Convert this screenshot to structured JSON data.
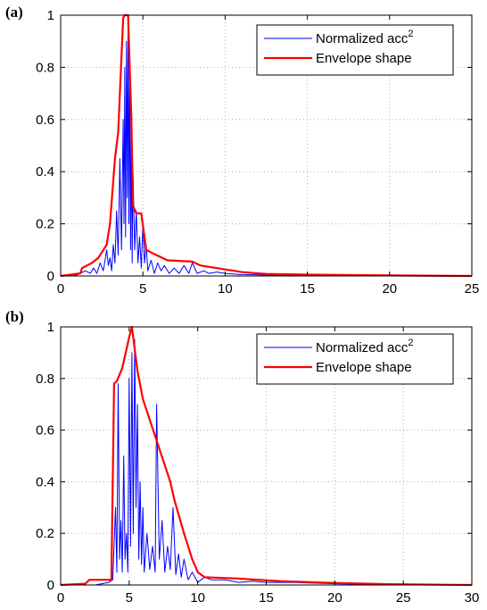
{
  "chart_data": [
    {
      "panel": "(a)",
      "type": "line",
      "xlim": [
        0,
        25
      ],
      "ylim": [
        0,
        1
      ],
      "xticks": [
        "0",
        "5",
        "10",
        "15",
        "20",
        "25"
      ],
      "yticks": [
        "0",
        "0.2",
        "0.4",
        "0.6",
        "0.8",
        "1"
      ],
      "grid": true,
      "legend_position": "top-right",
      "legend": [
        "Normalized acc",
        "Envelope shape"
      ],
      "legend_superscript": "2",
      "series": [
        {
          "name": "Normalized acc²",
          "color": "#0000ff",
          "x": [
            0,
            0.8,
            1.2,
            1.5,
            1.8,
            2.0,
            2.2,
            2.4,
            2.6,
            2.8,
            2.9,
            3.0,
            3.1,
            3.2,
            3.3,
            3.4,
            3.5,
            3.6,
            3.7,
            3.8,
            3.85,
            3.9,
            3.95,
            4.0,
            4.05,
            4.1,
            4.15,
            4.2,
            4.25,
            4.3,
            4.35,
            4.4,
            4.5,
            4.6,
            4.7,
            4.8,
            4.9,
            5.0,
            5.1,
            5.2,
            5.3,
            5.5,
            5.7,
            5.9,
            6.1,
            6.3,
            6.6,
            6.9,
            7.2,
            7.5,
            7.8,
            8.0,
            8.3,
            8.7,
            9.0,
            9.5,
            10,
            11,
            12,
            13,
            15,
            20,
            25
          ],
          "y": [
            0,
            0,
            0.01,
            0.02,
            0.01,
            0.03,
            0.01,
            0.05,
            0.02,
            0.1,
            0.04,
            0.07,
            0.02,
            0.12,
            0.05,
            0.25,
            0.08,
            0.45,
            0.1,
            0.6,
            0.2,
            0.8,
            0.15,
            0.9,
            0.3,
            0.98,
            0.2,
            0.85,
            0.1,
            0.6,
            0.05,
            0.4,
            0.1,
            0.25,
            0.05,
            0.15,
            0.03,
            0.2,
            0.05,
            0.12,
            0.02,
            0.06,
            0.01,
            0.05,
            0.02,
            0.04,
            0.01,
            0.03,
            0.01,
            0.04,
            0.01,
            0.05,
            0.01,
            0.02,
            0.01,
            0.015,
            0.01,
            0.005,
            0.004,
            0.003,
            0.002,
            0.001,
            0
          ]
        },
        {
          "name": "Envelope shape",
          "color": "#ff0000",
          "x": [
            0,
            1.2,
            1.3,
            1.9,
            2.3,
            2.8,
            3.0,
            3.3,
            3.5,
            3.8,
            3.9,
            4.1,
            4.3,
            4.4,
            4.6,
            4.9,
            5.2,
            5.5,
            6.5,
            8.0,
            8.5,
            9.5,
            11,
            12,
            12.5,
            15,
            20,
            25
          ],
          "y": [
            0,
            0.01,
            0.03,
            0.05,
            0.07,
            0.12,
            0.2,
            0.45,
            0.55,
            0.99,
            1.0,
            1.0,
            0.6,
            0.27,
            0.24,
            0.24,
            0.1,
            0.09,
            0.06,
            0.055,
            0.04,
            0.03,
            0.015,
            0.01,
            0.008,
            0.005,
            0.002,
            0
          ]
        }
      ]
    },
    {
      "panel": "(b)",
      "type": "line",
      "xlim": [
        0,
        30
      ],
      "ylim": [
        0,
        1
      ],
      "xticks": [
        "0",
        "5",
        "10",
        "15",
        "20",
        "25",
        "30"
      ],
      "yticks": [
        "0",
        "0.2",
        "0.4",
        "0.6",
        "0.8",
        "1"
      ],
      "grid": true,
      "legend_position": "top-right",
      "legend": [
        "Normalized acc",
        "Envelope shape"
      ],
      "legend_superscript": "2",
      "series": [
        {
          "name": "Normalized acc²",
          "color": "#0000ff",
          "x": [
            0,
            2.5,
            3.0,
            3.5,
            3.8,
            4.0,
            4.1,
            4.2,
            4.3,
            4.4,
            4.5,
            4.6,
            4.7,
            4.8,
            4.9,
            5.0,
            5.1,
            5.2,
            5.3,
            5.4,
            5.5,
            5.6,
            5.7,
            5.8,
            5.9,
            6.0,
            6.1,
            6.3,
            6.5,
            6.7,
            6.9,
            7.0,
            7.2,
            7.4,
            7.6,
            7.8,
            8.0,
            8.2,
            8.4,
            8.6,
            8.8,
            9.0,
            9.3,
            9.6,
            10,
            10.5,
            11,
            12,
            13,
            14,
            15,
            17,
            20,
            22,
            25,
            30
          ],
          "y": [
            0,
            0,
            0.005,
            0.01,
            0.02,
            0.3,
            0.05,
            0.78,
            0.1,
            0.25,
            0.05,
            0.5,
            0.1,
            0.2,
            0.05,
            0.8,
            0.15,
            0.9,
            0.2,
            0.95,
            0.3,
            0.7,
            0.1,
            0.4,
            0.08,
            0.3,
            0.05,
            0.2,
            0.06,
            0.15,
            0.05,
            0.7,
            0.1,
            0.25,
            0.05,
            0.15,
            0.06,
            0.3,
            0.04,
            0.12,
            0.03,
            0.1,
            0.02,
            0.05,
            0.01,
            0.03,
            0.02,
            0.02,
            0.01,
            0.015,
            0.01,
            0.01,
            0.005,
            0.003,
            0.001,
            0
          ]
        },
        {
          "name": "Envelope shape",
          "color": "#ff0000",
          "x": [
            0,
            1.8,
            2.1,
            3.7,
            3.9,
            4.1,
            4.5,
            5.0,
            5.2,
            5.6,
            6.0,
            8.0,
            8.3,
            9.0,
            9.6,
            10.0,
            10.5,
            13,
            16,
            20,
            24,
            30
          ],
          "y": [
            0,
            0.005,
            0.02,
            0.02,
            0.78,
            0.79,
            0.84,
            0.96,
            1.0,
            0.83,
            0.72,
            0.4,
            0.33,
            0.2,
            0.1,
            0.05,
            0.03,
            0.025,
            0.015,
            0.008,
            0.003,
            0
          ]
        }
      ]
    }
  ]
}
